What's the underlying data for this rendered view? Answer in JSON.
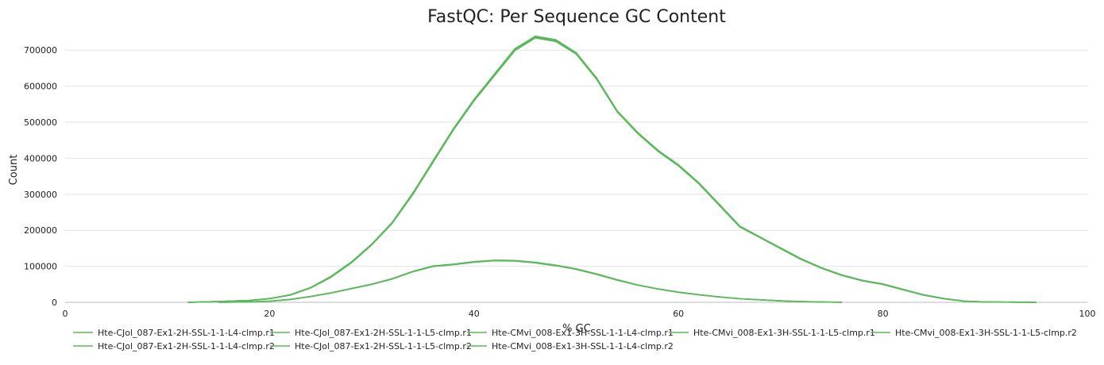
{
  "chart_data": {
    "type": "line",
    "title": "FastQC: Per Sequence GC Content",
    "xlabel": "% GC",
    "ylabel": "Count",
    "xlim": [
      0,
      100
    ],
    "ylim": [
      0,
      760000
    ],
    "xticks": [
      0,
      20,
      40,
      60,
      80,
      100
    ],
    "xtick_labels": [
      "0",
      "20",
      "40",
      "60",
      "80",
      "100"
    ],
    "yticks": [
      0,
      100000,
      200000,
      300000,
      400000,
      500000,
      600000,
      700000
    ],
    "ytick_labels": [
      "0",
      "100000",
      "200000",
      "300000",
      "400000",
      "500000",
      "600000",
      "700000"
    ],
    "grid": "horizontal",
    "legend_position": "bottom",
    "series_color": "#5cb85c",
    "series": [
      {
        "name": "Hte-CJol_087-Ex1-2H-SSL-1-1-L4-clmp.r1",
        "x": [
          12,
          15,
          18,
          20,
          22,
          24,
          26,
          28,
          30,
          32,
          34,
          36,
          38,
          40,
          42,
          44,
          46,
          48,
          50,
          52,
          54,
          56,
          58,
          60,
          62,
          64,
          66,
          68,
          70,
          72,
          74,
          76,
          78,
          80,
          82,
          84,
          86,
          88,
          90,
          95
        ],
        "y": [
          0,
          2000,
          5000,
          10000,
          20000,
          40000,
          70000,
          110000,
          160000,
          220000,
          300000,
          390000,
          480000,
          560000,
          630000,
          700000,
          735000,
          725000,
          690000,
          620000,
          530000,
          470000,
          420000,
          380000,
          330000,
          270000,
          210000,
          180000,
          150000,
          120000,
          95000,
          75000,
          60000,
          50000,
          35000,
          20000,
          10000,
          3000,
          1000,
          0
        ]
      },
      {
        "name": "Hte-CJol_087-Ex1-2H-SSL-1-1-L5-clmp.r1",
        "x": [
          12,
          15,
          18,
          20,
          22,
          24,
          26,
          28,
          30,
          32,
          34,
          36,
          38,
          40,
          42,
          44,
          46,
          48,
          50,
          52,
          54,
          56,
          58,
          60,
          62,
          64,
          66,
          68,
          70,
          72,
          74,
          76,
          78,
          80,
          82,
          84,
          86,
          88,
          90,
          95
        ],
        "y": [
          0,
          2100,
          5200,
          10500,
          21000,
          41000,
          72000,
          112000,
          162000,
          222000,
          303000,
          393000,
          483000,
          563000,
          634000,
          704000,
          739000,
          729000,
          693000,
          623000,
          532000,
          472000,
          422000,
          382000,
          332000,
          272000,
          212000,
          181000,
          151000,
          121000,
          96000,
          76000,
          61000,
          51000,
          36000,
          21000,
          10500,
          3200,
          1100,
          0
        ]
      },
      {
        "name": "Hte-CMvi_008-Ex1-3H-SSL-1-1-L4-clmp.r1",
        "x": [
          12,
          15,
          18,
          20,
          22,
          24,
          26,
          28,
          30,
          32,
          34,
          36,
          38,
          40,
          42,
          44,
          46,
          48,
          50,
          52,
          54,
          56,
          58,
          60,
          62,
          64,
          66,
          68,
          70,
          72,
          74,
          76,
          78,
          80,
          82,
          84,
          86,
          88,
          90,
          95
        ],
        "y": [
          0,
          1980,
          4950,
          9900,
          19800,
          39700,
          69500,
          109500,
          159500,
          219500,
          299000,
          389000,
          479000,
          559000,
          629000,
          699000,
          734000,
          724000,
          689000,
          619000,
          529000,
          469000,
          419000,
          379000,
          329000,
          269000,
          209000,
          179000,
          149000,
          119000,
          94500,
          74500,
          59500,
          49500,
          34500,
          19500,
          9800,
          2900,
          900,
          0
        ]
      },
      {
        "name": "Hte-CMvi_008-Ex1-3H-SSL-1-1-L5-clmp.r1",
        "x": [
          12,
          15,
          18,
          20,
          22,
          24,
          26,
          28,
          30,
          32,
          34,
          36,
          38,
          40,
          42,
          44,
          46,
          48,
          50,
          52,
          54,
          56,
          58,
          60,
          62,
          64,
          66,
          68,
          70,
          72,
          74,
          76,
          78,
          80,
          82,
          84,
          86,
          88,
          90,
          95
        ],
        "y": [
          0,
          2050,
          5100,
          10200,
          20400,
          40500,
          71000,
          111000,
          161000,
          221000,
          301500,
          391500,
          481500,
          561500,
          632000,
          702000,
          737000,
          727000,
          691500,
          621500,
          531000,
          471000,
          421000,
          381000,
          331000,
          271000,
          211000,
          180500,
          150500,
          120500,
          95500,
          75500,
          60500,
          50500,
          35500,
          20500,
          10200,
          3100,
          1000,
          0
        ]
      },
      {
        "name": "Hte-CMvi_008-Ex1-3H-SSL-1-1-L5-clmp.r2",
        "x": [
          12,
          15,
          18,
          20,
          22,
          24,
          26,
          28,
          30,
          32,
          34,
          36,
          38,
          40,
          42,
          44,
          46,
          48,
          50,
          52,
          54,
          56,
          58,
          60,
          62,
          64,
          66,
          68,
          70,
          72,
          74,
          76,
          78,
          80,
          82,
          84,
          86,
          88,
          90,
          95
        ],
        "y": [
          0,
          2020,
          5050,
          10100,
          20200,
          40200,
          70500,
          110500,
          160500,
          220500,
          300500,
          390500,
          480500,
          560500,
          631000,
          701000,
          736000,
          726000,
          690500,
          620500,
          530500,
          470500,
          420500,
          380500,
          330500,
          270500,
          210500,
          180200,
          150200,
          120200,
          95200,
          75200,
          60200,
          50200,
          35200,
          20200,
          10100,
          3050,
          1000,
          0
        ]
      },
      {
        "name": "Hte-CJol_087-Ex1-2H-SSL-1-1-L4-clmp.r2",
        "x": [
          15,
          18,
          20,
          22,
          24,
          26,
          28,
          30,
          32,
          34,
          36,
          38,
          40,
          42,
          44,
          46,
          48,
          50,
          52,
          54,
          56,
          58,
          60,
          62,
          64,
          66,
          68,
          70,
          72,
          74,
          76
        ],
        "y": [
          0,
          1000,
          3000,
          8000,
          16000,
          26000,
          38000,
          50000,
          65000,
          85000,
          100000,
          105000,
          112000,
          116000,
          115000,
          110000,
          102000,
          92000,
          78000,
          62000,
          48000,
          37000,
          28000,
          21000,
          15000,
          10000,
          7000,
          4000,
          2000,
          1000,
          0
        ]
      },
      {
        "name": "Hte-CJol_087-Ex1-2H-SSL-1-1-L5-clmp.r2",
        "x": [
          15,
          18,
          20,
          22,
          24,
          26,
          28,
          30,
          32,
          34,
          36,
          38,
          40,
          42,
          44,
          46,
          48,
          50,
          52,
          54,
          56,
          58,
          60,
          62,
          64,
          66,
          68,
          70,
          72,
          74,
          76
        ],
        "y": [
          0,
          1050,
          3100,
          8200,
          16300,
          26400,
          38500,
          50600,
          65800,
          86000,
          101000,
          106000,
          113000,
          117000,
          116000,
          111000,
          103000,
          93000,
          79000,
          63000,
          48500,
          37500,
          28400,
          21300,
          15200,
          10100,
          7100,
          4100,
          2000,
          1000,
          0
        ]
      },
      {
        "name": "Hte-CMvi_008-Ex1-3H-SSL-1-1-L4-clmp.r2",
        "x": [
          15,
          18,
          20,
          22,
          24,
          26,
          28,
          30,
          32,
          34,
          36,
          38,
          40,
          42,
          44,
          46,
          48,
          50,
          52,
          54,
          56,
          58,
          60,
          62,
          64,
          66,
          68,
          70,
          72,
          74,
          76
        ],
        "y": [
          0,
          980,
          2950,
          7900,
          15800,
          25800,
          37700,
          49600,
          64500,
          84500,
          99500,
          104500,
          111500,
          115500,
          114500,
          109500,
          101500,
          91500,
          77500,
          61500,
          47600,
          36700,
          27700,
          20800,
          14800,
          9900,
          6900,
          3900,
          1900,
          950,
          0
        ]
      }
    ]
  },
  "legend": {
    "rows": [
      [
        "Hte-CJol_087-Ex1-2H-SSL-1-1-L4-clmp.r1",
        "Hte-CJol_087-Ex1-2H-SSL-1-1-L5-clmp.r1",
        "Hte-CMvi_008-Ex1-3H-SSL-1-1-L4-clmp.r1",
        "Hte-CMvi_008-Ex1-3H-SSL-1-1-L5-clmp.r1",
        "Hte-CMvi_008-Ex1-3H-SSL-1-1-L5-clmp.r2"
      ],
      [
        "Hte-CJol_087-Ex1-2H-SSL-1-1-L4-clmp.r2",
        "Hte-CJol_087-Ex1-2H-SSL-1-1-L5-clmp.r2",
        "Hte-CMvi_008-Ex1-3H-SSL-1-1-L4-clmp.r2"
      ]
    ]
  }
}
